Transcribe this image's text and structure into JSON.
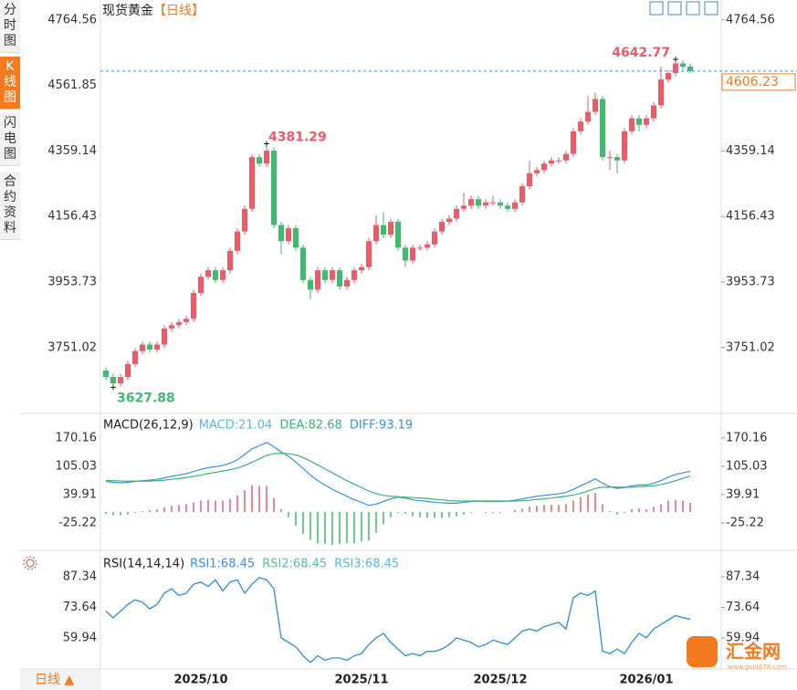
{
  "sidebar": {
    "tabs": [
      "分时图",
      "K线图",
      "闪电图",
      "合约资料"
    ],
    "active": 1
  },
  "footer": {
    "period_button": "日线 ▲",
    "watermark": "汇金网",
    "watermark_url": "www.gold678.com"
  },
  "chart_data": [
    {
      "type": "candlestick",
      "title": "现货黄金",
      "period": "【日线】",
      "up_color": "#ef5a6a",
      "down_color": "#3dbb6e",
      "last_color": "#f47a20",
      "ylim": [
        3550,
        4812
      ],
      "yticks": [
        4764.56,
        4561.85,
        4359.14,
        4156.43,
        3953.73,
        3751.02
      ],
      "xticks": [
        {
          "value": 13,
          "label": "2025/10"
        },
        {
          "value": 35,
          "label": "2025/11"
        },
        {
          "value": 54,
          "label": "2025/12"
        },
        {
          "value": 74,
          "label": "2026/01"
        }
      ],
      "candles": [
        [
          3680,
          3690,
          3650,
          3660
        ],
        [
          3660,
          3670,
          3627.88,
          3640
        ],
        [
          3640,
          3670,
          3630,
          3660
        ],
        [
          3660,
          3710,
          3650,
          3700
        ],
        [
          3700,
          3750,
          3690,
          3740
        ],
        [
          3740,
          3770,
          3730,
          3760
        ],
        [
          3760,
          3770,
          3735,
          3745
        ],
        [
          3745,
          3770,
          3735,
          3760
        ],
        [
          3760,
          3820,
          3750,
          3810
        ],
        [
          3810,
          3830,
          3800,
          3820
        ],
        [
          3820,
          3840,
          3810,
          3830
        ],
        [
          3830,
          3850,
          3820,
          3840
        ],
        [
          3840,
          3930,
          3830,
          3920
        ],
        [
          3920,
          3980,
          3910,
          3970
        ],
        [
          3970,
          4000,
          3960,
          3990
        ],
        [
          3990,
          4000,
          3950,
          3960
        ],
        [
          3960,
          4000,
          3950,
          3990
        ],
        [
          3990,
          4060,
          3980,
          4050
        ],
        [
          4050,
          4120,
          4040,
          4110
        ],
        [
          4110,
          4190,
          4100,
          4180
        ],
        [
          4180,
          4350,
          4170,
          4340
        ],
        [
          4340,
          4350,
          4310,
          4320
        ],
        [
          4320,
          4381.29,
          4310,
          4360
        ],
        [
          4360,
          4370,
          4120,
          4130
        ],
        [
          4130,
          4140,
          4040,
          4080
        ],
        [
          4080,
          4130,
          4070,
          4120
        ],
        [
          4120,
          4130,
          4050,
          4060
        ],
        [
          4060,
          4070,
          3950,
          3960
        ],
        [
          3960,
          3970,
          3900,
          3930
        ],
        [
          3930,
          4000,
          3920,
          3990
        ],
        [
          3990,
          4000,
          3950,
          3960
        ],
        [
          3960,
          4000,
          3950,
          3990
        ],
        [
          3990,
          4000,
          3930,
          3940
        ],
        [
          3940,
          3970,
          3930,
          3960
        ],
        [
          3960,
          4000,
          3950,
          3990
        ],
        [
          3990,
          4010,
          3980,
          4000
        ],
        [
          4000,
          4090,
          3990,
          4080
        ],
        [
          4080,
          4160,
          4070,
          4130
        ],
        [
          4130,
          4170,
          4090,
          4100
        ],
        [
          4100,
          4150,
          4090,
          4140
        ],
        [
          4140,
          4150,
          4050,
          4060
        ],
        [
          4060,
          4070,
          4000,
          4020
        ],
        [
          4020,
          4070,
          4010,
          4060
        ],
        [
          4060,
          4070,
          4050,
          4060
        ],
        [
          4060,
          4080,
          4050,
          4070
        ],
        [
          4070,
          4120,
          4060,
          4110
        ],
        [
          4110,
          4150,
          4100,
          4140
        ],
        [
          4140,
          4160,
          4130,
          4150
        ],
        [
          4150,
          4190,
          4140,
          4180
        ],
        [
          4180,
          4230,
          4170,
          4190
        ],
        [
          4190,
          4220,
          4180,
          4210
        ],
        [
          4210,
          4220,
          4180,
          4190
        ],
        [
          4190,
          4210,
          4180,
          4200
        ],
        [
          4200,
          4220,
          4190,
          4200
        ],
        [
          4200,
          4210,
          4180,
          4190
        ],
        [
          4190,
          4200,
          4170,
          4180
        ],
        [
          4180,
          4210,
          4170,
          4200
        ],
        [
          4200,
          4260,
          4190,
          4250
        ],
        [
          4250,
          4330,
          4240,
          4290
        ],
        [
          4290,
          4310,
          4280,
          4300
        ],
        [
          4300,
          4330,
          4290,
          4320
        ],
        [
          4320,
          4340,
          4310,
          4330
        ],
        [
          4330,
          4340,
          4320,
          4330
        ],
        [
          4330,
          4360,
          4320,
          4350
        ],
        [
          4350,
          4430,
          4340,
          4420
        ],
        [
          4420,
          4460,
          4410,
          4450
        ],
        [
          4450,
          4530,
          4440,
          4480
        ],
        [
          4480,
          4540,
          4470,
          4520
        ],
        [
          4520,
          4530,
          4330,
          4340
        ],
        [
          4340,
          4360,
          4300,
          4340
        ],
        [
          4340,
          4350,
          4290,
          4330
        ],
        [
          4330,
          4430,
          4320,
          4420
        ],
        [
          4420,
          4470,
          4410,
          4460
        ],
        [
          4460,
          4470,
          4420,
          4440
        ],
        [
          4440,
          4470,
          4430,
          4460
        ],
        [
          4460,
          4510,
          4450,
          4500
        ],
        [
          4500,
          4620,
          4490,
          4580
        ],
        [
          4580,
          4610,
          4570,
          4600
        ],
        [
          4600,
          4642.77,
          4590,
          4630
        ],
        [
          4630,
          4640,
          4610,
          4620
        ],
        [
          4620,
          4630,
          4600,
          4606.23
        ]
      ]
    },
    {
      "type": "macd",
      "title": "MACD(26,12,9)",
      "ylim": [
        -82,
        216
      ],
      "yticks": [
        170.16,
        105.03,
        39.91,
        -25.22
      ],
      "pos_color": "#ef5a6a",
      "neg_color": "#3dbb6e",
      "series": [
        {
          "name": "DIFF:93.19",
          "color": "#3d8fe8",
          "values": [
            70,
            68,
            67,
            68,
            70,
            72,
            73,
            75,
            78,
            82,
            85,
            88,
            93,
            98,
            102,
            104,
            107,
            112,
            120,
            132,
            145,
            152,
            160,
            150,
            138,
            128,
            115,
            100,
            85,
            72,
            62,
            52,
            44,
            36,
            28,
            22,
            15,
            18,
            24,
            30,
            34,
            32,
            28,
            26,
            24,
            22,
            21,
            20,
            20,
            22,
            24,
            25,
            24,
            24,
            24,
            25,
            27,
            30,
            33,
            36,
            38,
            40,
            42,
            45,
            52,
            60,
            68,
            76,
            66,
            58,
            54,
            56,
            60,
            62,
            62,
            66,
            72,
            80,
            86,
            90,
            93.19
          ]
        },
        {
          "name": "DEA:82.68",
          "color": "#3cb371",
          "values": [
            72,
            72,
            71,
            71,
            71,
            71,
            71,
            72,
            73,
            75,
            77,
            79,
            82,
            85,
            88,
            91,
            94,
            97,
            101,
            107,
            114,
            122,
            130,
            134,
            135,
            134,
            131,
            125,
            117,
            108,
            99,
            90,
            81,
            72,
            64,
            56,
            48,
            42,
            38,
            36,
            35,
            34,
            33,
            32,
            31,
            29,
            28,
            26,
            25,
            25,
            25,
            25,
            25,
            25,
            25,
            25,
            25,
            26,
            27,
            29,
            30,
            32,
            34,
            36,
            39,
            43,
            48,
            54,
            57,
            57,
            57,
            57,
            57,
            58,
            59,
            60,
            63,
            67,
            72,
            77,
            82.68
          ]
        },
        {
          "name": "MACD:21.04",
          "color": "#5bb8e6",
          "values": [
            -4,
            -8,
            -8,
            -6,
            -2,
            2,
            4,
            6,
            10,
            14,
            16,
            18,
            22,
            26,
            28,
            26,
            26,
            30,
            38,
            50,
            62,
            60,
            60,
            32,
            6,
            -12,
            -32,
            -50,
            -64,
            -72,
            -74,
            -76,
            -74,
            -72,
            -72,
            -68,
            -66,
            -48,
            -28,
            -12,
            -2,
            -4,
            -10,
            -12,
            -14,
            -14,
            -14,
            -12,
            -10,
            -6,
            -2,
            0,
            -2,
            -2,
            -2,
            0,
            4,
            8,
            12,
            14,
            16,
            16,
            16,
            18,
            26,
            34,
            40,
            44,
            18,
            2,
            -6,
            -2,
            6,
            8,
            6,
            12,
            18,
            26,
            28,
            26,
            21.04
          ]
        }
      ]
    },
    {
      "type": "line",
      "title": "RSI(14,14,14)",
      "ylim": [
        47.3,
        95.5
      ],
      "yticks": [
        87.34,
        73.64,
        59.94
      ],
      "series": [
        {
          "name": "RSI3:68.45",
          "color": "#5bb8e6",
          "values": [
            72,
            69,
            72,
            75,
            77,
            76,
            73,
            75,
            80,
            82,
            79,
            80,
            84,
            85,
            83,
            86,
            81,
            85,
            86,
            80,
            84,
            87,
            86,
            82,
            60,
            58,
            56,
            52,
            49,
            52,
            50,
            51,
            51,
            50,
            52,
            53,
            57,
            60,
            62,
            58,
            55,
            52,
            53,
            52,
            54,
            54,
            55,
            57,
            60,
            59,
            58,
            56,
            57,
            59,
            58,
            57,
            60,
            63,
            64,
            63,
            65,
            66,
            67,
            64,
            78,
            80,
            79,
            81,
            54,
            53,
            55,
            53,
            58,
            62,
            60,
            64,
            66,
            68,
            70,
            69,
            68.45
          ]
        },
        {
          "name": "RSI2:68.45",
          "color": "#5ac18e",
          "values": [
            72,
            69,
            72,
            75,
            77,
            76,
            73,
            75,
            80,
            82,
            79,
            80,
            84,
            85,
            83,
            86,
            81,
            85,
            86,
            80,
            84,
            87,
            86,
            82,
            60,
            58,
            56,
            52,
            49,
            52,
            50,
            51,
            51,
            50,
            52,
            53,
            57,
            60,
            62,
            58,
            55,
            52,
            53,
            52,
            54,
            54,
            55,
            57,
            60,
            59,
            58,
            56,
            57,
            59,
            58,
            57,
            60,
            63,
            64,
            63,
            65,
            66,
            67,
            64,
            78,
            80,
            79,
            81,
            54,
            53,
            55,
            53,
            58,
            62,
            60,
            64,
            66,
            68,
            70,
            69,
            68.45
          ]
        },
        {
          "name": "RSI1:68.45",
          "color": "#3d8fe8",
          "values": [
            72,
            69,
            72,
            75,
            77,
            76,
            73,
            75,
            80,
            82,
            79,
            80,
            84,
            85,
            83,
            86,
            81,
            85,
            86,
            80,
            84,
            87,
            86,
            82,
            60,
            58,
            56,
            52,
            49,
            52,
            50,
            51,
            51,
            50,
            52,
            53,
            57,
            60,
            62,
            58,
            55,
            52,
            53,
            52,
            54,
            54,
            55,
            57,
            60,
            59,
            58,
            56,
            57,
            59,
            58,
            57,
            60,
            63,
            64,
            63,
            65,
            66,
            67,
            64,
            78,
            80,
            79,
            81,
            54,
            53,
            55,
            53,
            58,
            62,
            60,
            64,
            66,
            68,
            70,
            69,
            68.45
          ]
        }
      ]
    }
  ]
}
